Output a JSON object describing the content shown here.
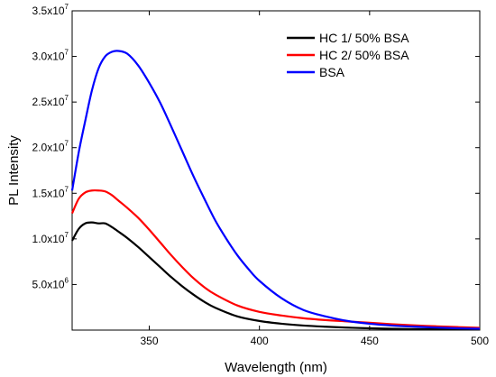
{
  "chart_data": {
    "type": "line",
    "xlabel": "Wavelength (nm)",
    "ylabel": "PL Intensity",
    "xlim": [
      315,
      500
    ],
    "ylim": [
      0,
      35000000
    ],
    "x_ticks": [
      350,
      400,
      450,
      500
    ],
    "y_ticks": [
      {
        "value": 5000000,
        "mantissa": "5.0x10",
        "exp": "6"
      },
      {
        "value": 10000000,
        "mantissa": "1.0x10",
        "exp": "7"
      },
      {
        "value": 15000000,
        "mantissa": "1.5x10",
        "exp": "7"
      },
      {
        "value": 20000000,
        "mantissa": "2.0x10",
        "exp": "7"
      },
      {
        "value": 25000000,
        "mantissa": "2.5x10",
        "exp": "7"
      },
      {
        "value": 30000000,
        "mantissa": "3.0x10",
        "exp": "7"
      },
      {
        "value": 35000000,
        "mantissa": "3.5x10",
        "exp": "7"
      }
    ],
    "legend_position": "top-right",
    "grid": false,
    "series": [
      {
        "name": "HC 1/ 50% BSA",
        "color": "#000000",
        "x": [
          315,
          318,
          321,
          324,
          327,
          330,
          333,
          336,
          340,
          345,
          350,
          355,
          360,
          365,
          370,
          375,
          380,
          390,
          400,
          410,
          420,
          430,
          440,
          450,
          460,
          470,
          480,
          490,
          500
        ],
        "y": [
          9800000,
          11100000,
          11700000,
          11800000,
          11700000,
          11700000,
          11300000,
          10800000,
          10100000,
          9100000,
          8000000,
          6900000,
          5800000,
          4800000,
          3900000,
          3100000,
          2450000,
          1500000,
          1000000,
          700000,
          500000,
          370000,
          270000,
          200000,
          150000,
          110000,
          90000,
          70000,
          60000
        ]
      },
      {
        "name": "HC 2/ 50% BSA",
        "color": "#ff0000",
        "x": [
          315,
          318,
          321,
          324,
          327,
          330,
          333,
          336,
          340,
          345,
          350,
          355,
          360,
          365,
          370,
          375,
          380,
          390,
          400,
          410,
          420,
          430,
          440,
          450,
          460,
          470,
          480,
          490,
          500
        ],
        "y": [
          12800000,
          14400000,
          15100000,
          15300000,
          15300000,
          15200000,
          14800000,
          14200000,
          13400000,
          12300000,
          11000000,
          9600000,
          8200000,
          6900000,
          5700000,
          4700000,
          3900000,
          2700000,
          2000000,
          1600000,
          1300000,
          1100000,
          950000,
          800000,
          650000,
          520000,
          420000,
          330000,
          250000
        ]
      },
      {
        "name": "BSA",
        "color": "#0000ff",
        "x": [
          315,
          318,
          321,
          324,
          327,
          330,
          333,
          336,
          340,
          345,
          350,
          355,
          360,
          365,
          370,
          375,
          380,
          385,
          390,
          395,
          400,
          410,
          420,
          430,
          440,
          450,
          460,
          470,
          480,
          490,
          500
        ],
        "y": [
          15300000,
          19500000,
          23000000,
          26300000,
          28700000,
          30000000,
          30500000,
          30600000,
          30300000,
          29000000,
          27100000,
          24900000,
          22300000,
          19600000,
          16900000,
          14400000,
          12000000,
          10000000,
          8200000,
          6700000,
          5400000,
          3500000,
          2200000,
          1500000,
          1000000,
          700000,
          500000,
          380000,
          280000,
          200000,
          150000
        ]
      }
    ]
  }
}
